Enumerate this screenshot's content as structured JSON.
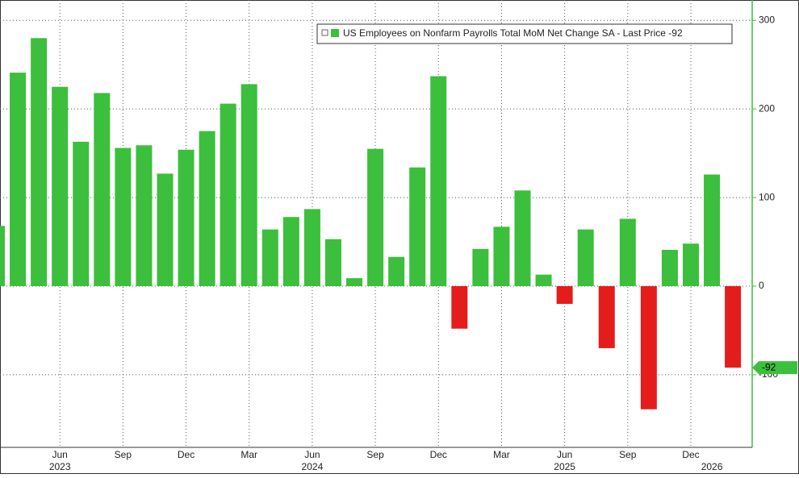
{
  "chart_data": {
    "type": "bar",
    "categories": [
      null,
      null,
      null,
      "Jun",
      null,
      null,
      "Sep",
      null,
      null,
      "Dec",
      null,
      null,
      "Mar",
      null,
      null,
      "Jun",
      null,
      null,
      "Sep",
      null,
      null,
      "Dec",
      null,
      null,
      "Mar",
      null,
      null,
      "Jun",
      null,
      null,
      "Sep",
      null,
      null,
      "Dec",
      null,
      null
    ],
    "year_labels": [
      null,
      null,
      null,
      "2023",
      null,
      null,
      null,
      null,
      null,
      null,
      null,
      null,
      null,
      null,
      null,
      "2024",
      null,
      null,
      null,
      null,
      null,
      null,
      null,
      null,
      null,
      null,
      null,
      "2025",
      null,
      null,
      null,
      null,
      null,
      null,
      "2026",
      null
    ],
    "series": [
      {
        "name": "US Employees on Nonfarm Payrolls Total MoM Net Change SA - Last Price -92",
        "color": "#3cbf3c",
        "negative_color": "#e51c1c",
        "values": [
          68,
          241,
          280,
          225,
          163,
          218,
          156,
          159,
          127,
          154,
          175,
          206,
          228,
          64,
          78,
          87,
          53,
          9,
          155,
          33,
          134,
          237,
          -48,
          42,
          67,
          108,
          13,
          -20,
          64,
          -70,
          76,
          -139,
          41,
          48,
          126,
          -92
        ]
      }
    ],
    "ylim": [
      -182,
      323
    ],
    "yticks": [
      300,
      200,
      100,
      0,
      -100
    ],
    "grid": true
  }
}
